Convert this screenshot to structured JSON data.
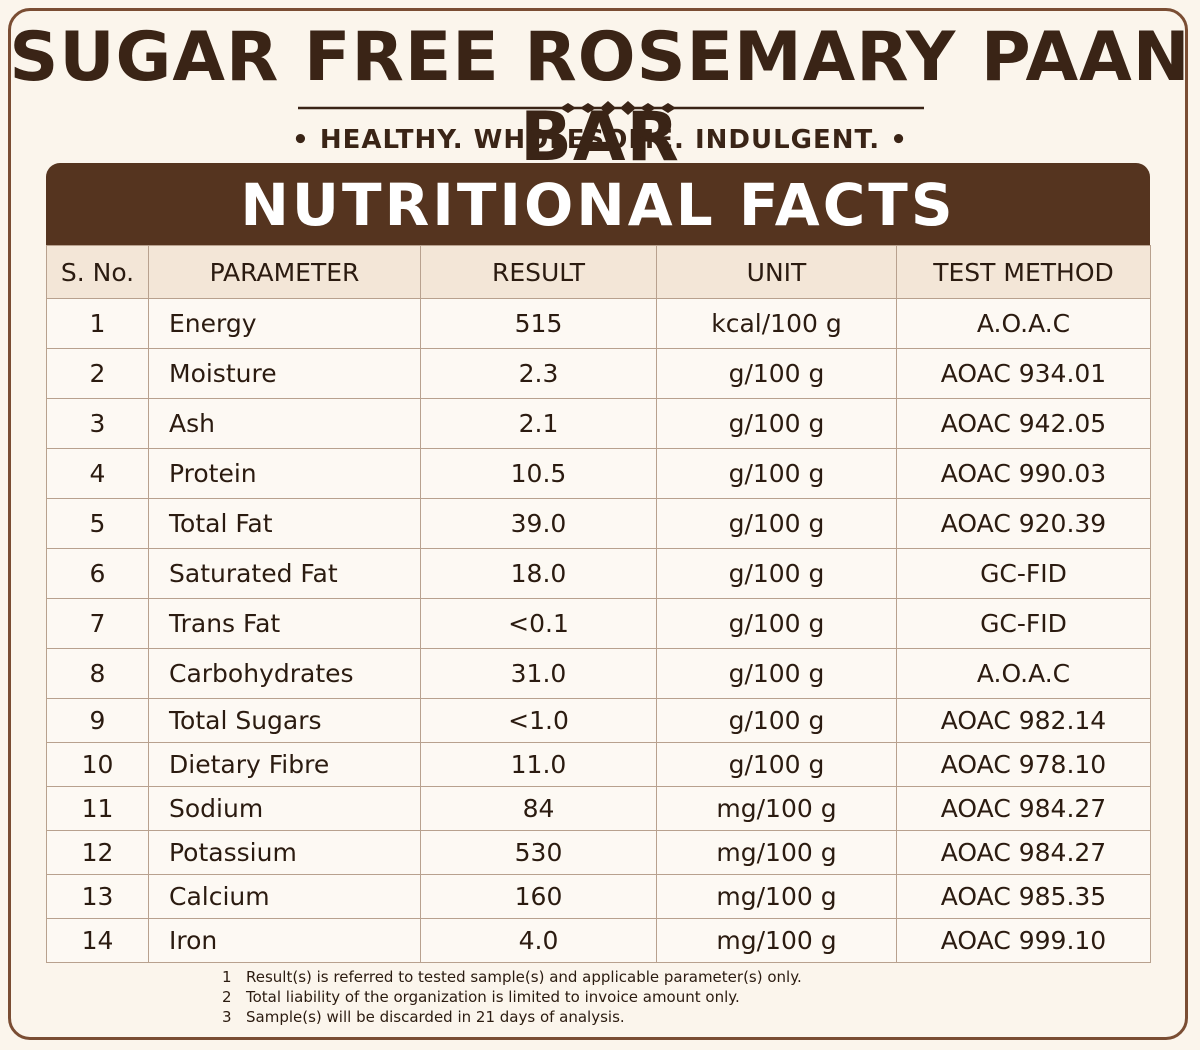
{
  "title": "SUGAR FREE ROSEMARY PAAN BAR",
  "tagline": "• HEALTHY. WHOLESOME. INDULGENT. •",
  "banner": "NUTRITIONAL FACTS",
  "headers": [
    "S. No.",
    "PARAMETER",
    "RESULT",
    "UNIT",
    "TEST METHOD"
  ],
  "rows": [
    {
      "sno": "1",
      "parameter": "Energy",
      "result": "515",
      "unit": "kcal/100 g",
      "method": "A.O.A.C"
    },
    {
      "sno": "2",
      "parameter": "Moisture",
      "result": "2.3",
      "unit": "g/100 g",
      "method": "AOAC 934.01"
    },
    {
      "sno": "3",
      "parameter": "Ash",
      "result": "2.1",
      "unit": "g/100 g",
      "method": "AOAC 942.05"
    },
    {
      "sno": "4",
      "parameter": "Protein",
      "result": "10.5",
      "unit": "g/100 g",
      "method": "AOAC 990.03"
    },
    {
      "sno": "5",
      "parameter": "Total Fat",
      "result": "39.0",
      "unit": "g/100 g",
      "method": "AOAC 920.39"
    },
    {
      "sno": "6",
      "parameter": "Saturated Fat",
      "result": "18.0",
      "unit": "g/100 g",
      "method": "GC-FID"
    },
    {
      "sno": "7",
      "parameter": "Trans Fat",
      "result": "<0.1",
      "unit": "g/100 g",
      "method": "GC-FID"
    },
    {
      "sno": "8",
      "parameter": "Carbohydrates",
      "result": "31.0",
      "unit": "g/100 g",
      "method": "A.O.A.C"
    },
    {
      "sno": "9",
      "parameter": "Total Sugars",
      "result": "<1.0",
      "unit": "g/100 g",
      "method": "AOAC 982.14"
    },
    {
      "sno": "10",
      "parameter": "Dietary Fibre",
      "result": "11.0",
      "unit": "g/100 g",
      "method": "AOAC 978.10"
    },
    {
      "sno": "11",
      "parameter": "Sodium",
      "result": "84",
      "unit": "mg/100 g",
      "method": "AOAC 984.27"
    },
    {
      "sno": "12",
      "parameter": "Potassium",
      "result": "530",
      "unit": "mg/100 g",
      "method": "AOAC 984.27"
    },
    {
      "sno": "13",
      "parameter": "Calcium",
      "result": "160",
      "unit": "mg/100 g",
      "method": "AOAC 985.35"
    },
    {
      "sno": "14",
      "parameter": "Iron",
      "result": "4.0",
      "unit": "mg/100 g",
      "method": "AOAC 999.10"
    }
  ],
  "notes": [
    {
      "num": "1",
      "text": "Result(s) is referred to tested sample(s) and applicable parameter(s) only."
    },
    {
      "num": "2",
      "text": "Total liability of the organization is limited to invoice amount only."
    },
    {
      "num": "3",
      "text": "Sample(s) will be discarded in 21 days of analysis."
    }
  ],
  "colors": {
    "banner": "#55341f",
    "title": "#3a2416",
    "background": "#fbf5ec",
    "header_row": "#f3e6d7"
  }
}
